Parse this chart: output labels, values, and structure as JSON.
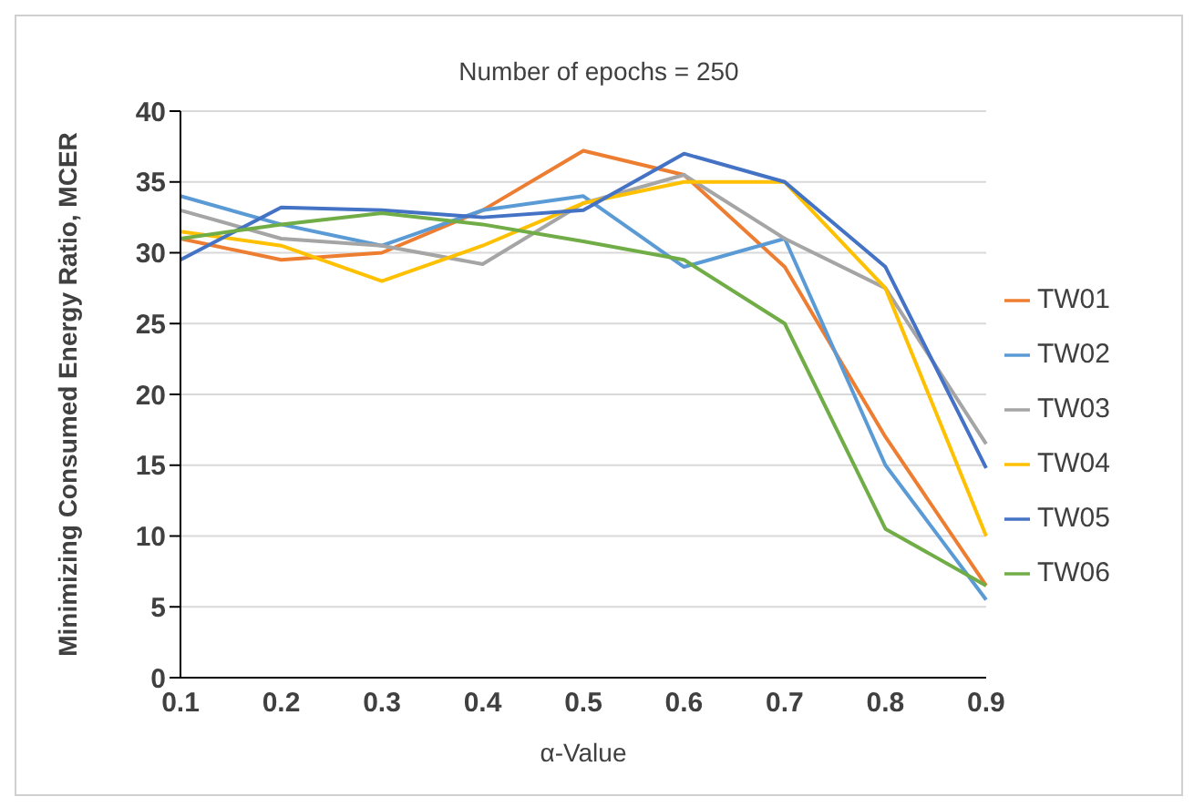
{
  "chart_data": {
    "type": "line",
    "title": "Number of epochs = 250",
    "xlabel": "α-Value",
    "ylabel": "Minimizing Consumed Energy Ratio, MCER",
    "categories": [
      "0.1",
      "0.2",
      "0.3",
      "0.4",
      "0.5",
      "0.6",
      "0.7",
      "0.8",
      "0.9"
    ],
    "series": [
      {
        "name": "TW01",
        "color": "#ed7d31",
        "values": [
          31,
          29.5,
          30,
          33,
          37.2,
          35.5,
          29,
          17,
          6.5
        ]
      },
      {
        "name": "TW02",
        "color": "#5b9bd5",
        "values": [
          34,
          32,
          30.5,
          33,
          34,
          29,
          31,
          15,
          5.5
        ]
      },
      {
        "name": "TW03",
        "color": "#a5a5a5",
        "values": [
          33,
          31,
          30.5,
          29.2,
          33.5,
          35.5,
          31,
          27.5,
          16.5
        ]
      },
      {
        "name": "TW04",
        "color": "#ffc000",
        "values": [
          31.5,
          30.5,
          28,
          30.5,
          33.5,
          35,
          35,
          27.5,
          10
        ]
      },
      {
        "name": "TW05",
        "color": "#4472c4",
        "values": [
          29.5,
          33.2,
          33,
          32.5,
          33,
          37,
          35,
          29,
          14.8
        ]
      },
      {
        "name": "TW06",
        "color": "#70ad47",
        "values": [
          31,
          32,
          32.8,
          32,
          30.8,
          29.5,
          25,
          10.5,
          6.5
        ]
      }
    ],
    "ylim": [
      0,
      40
    ],
    "yticks": [
      0,
      5,
      10,
      15,
      20,
      25,
      30,
      35,
      40
    ],
    "grid": "y",
    "legend": "right",
    "marker": "none",
    "line_style": "solid"
  }
}
